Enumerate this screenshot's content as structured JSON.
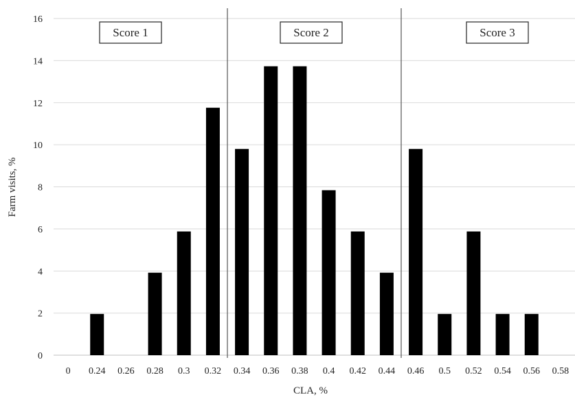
{
  "chart_data": {
    "type": "bar",
    "xlabel": "CLA, %",
    "ylabel": "Farm visits, %",
    "categories": [
      "0",
      "0.24",
      "0.26",
      "0.28",
      "0.3",
      "0.32",
      "0.34",
      "0.36",
      "0.38",
      "0.4",
      "0.42",
      "0.44",
      "0.46",
      "0.5",
      "0.52",
      "0.54",
      "0.56",
      "0.58"
    ],
    "series": [
      {
        "values": [
          0,
          1.96,
          0,
          3.92,
          5.88,
          11.76,
          9.8,
          13.73,
          13.73,
          7.84,
          5.88,
          3.92,
          9.8,
          1.96,
          5.88,
          1.96,
          1.96,
          0
        ]
      }
    ],
    "ylim": [
      0,
      16
    ],
    "yticks": [
      "0",
      "2",
      "4",
      "6",
      "8",
      "10",
      "12",
      "14",
      "16"
    ],
    "grid": "horizontal",
    "bar_color": "#000000",
    "grid_color": "#d9d9d9",
    "annotations": {
      "score_labels": [
        "Score 1",
        "Score 2",
        "Score 3"
      ]
    }
  }
}
